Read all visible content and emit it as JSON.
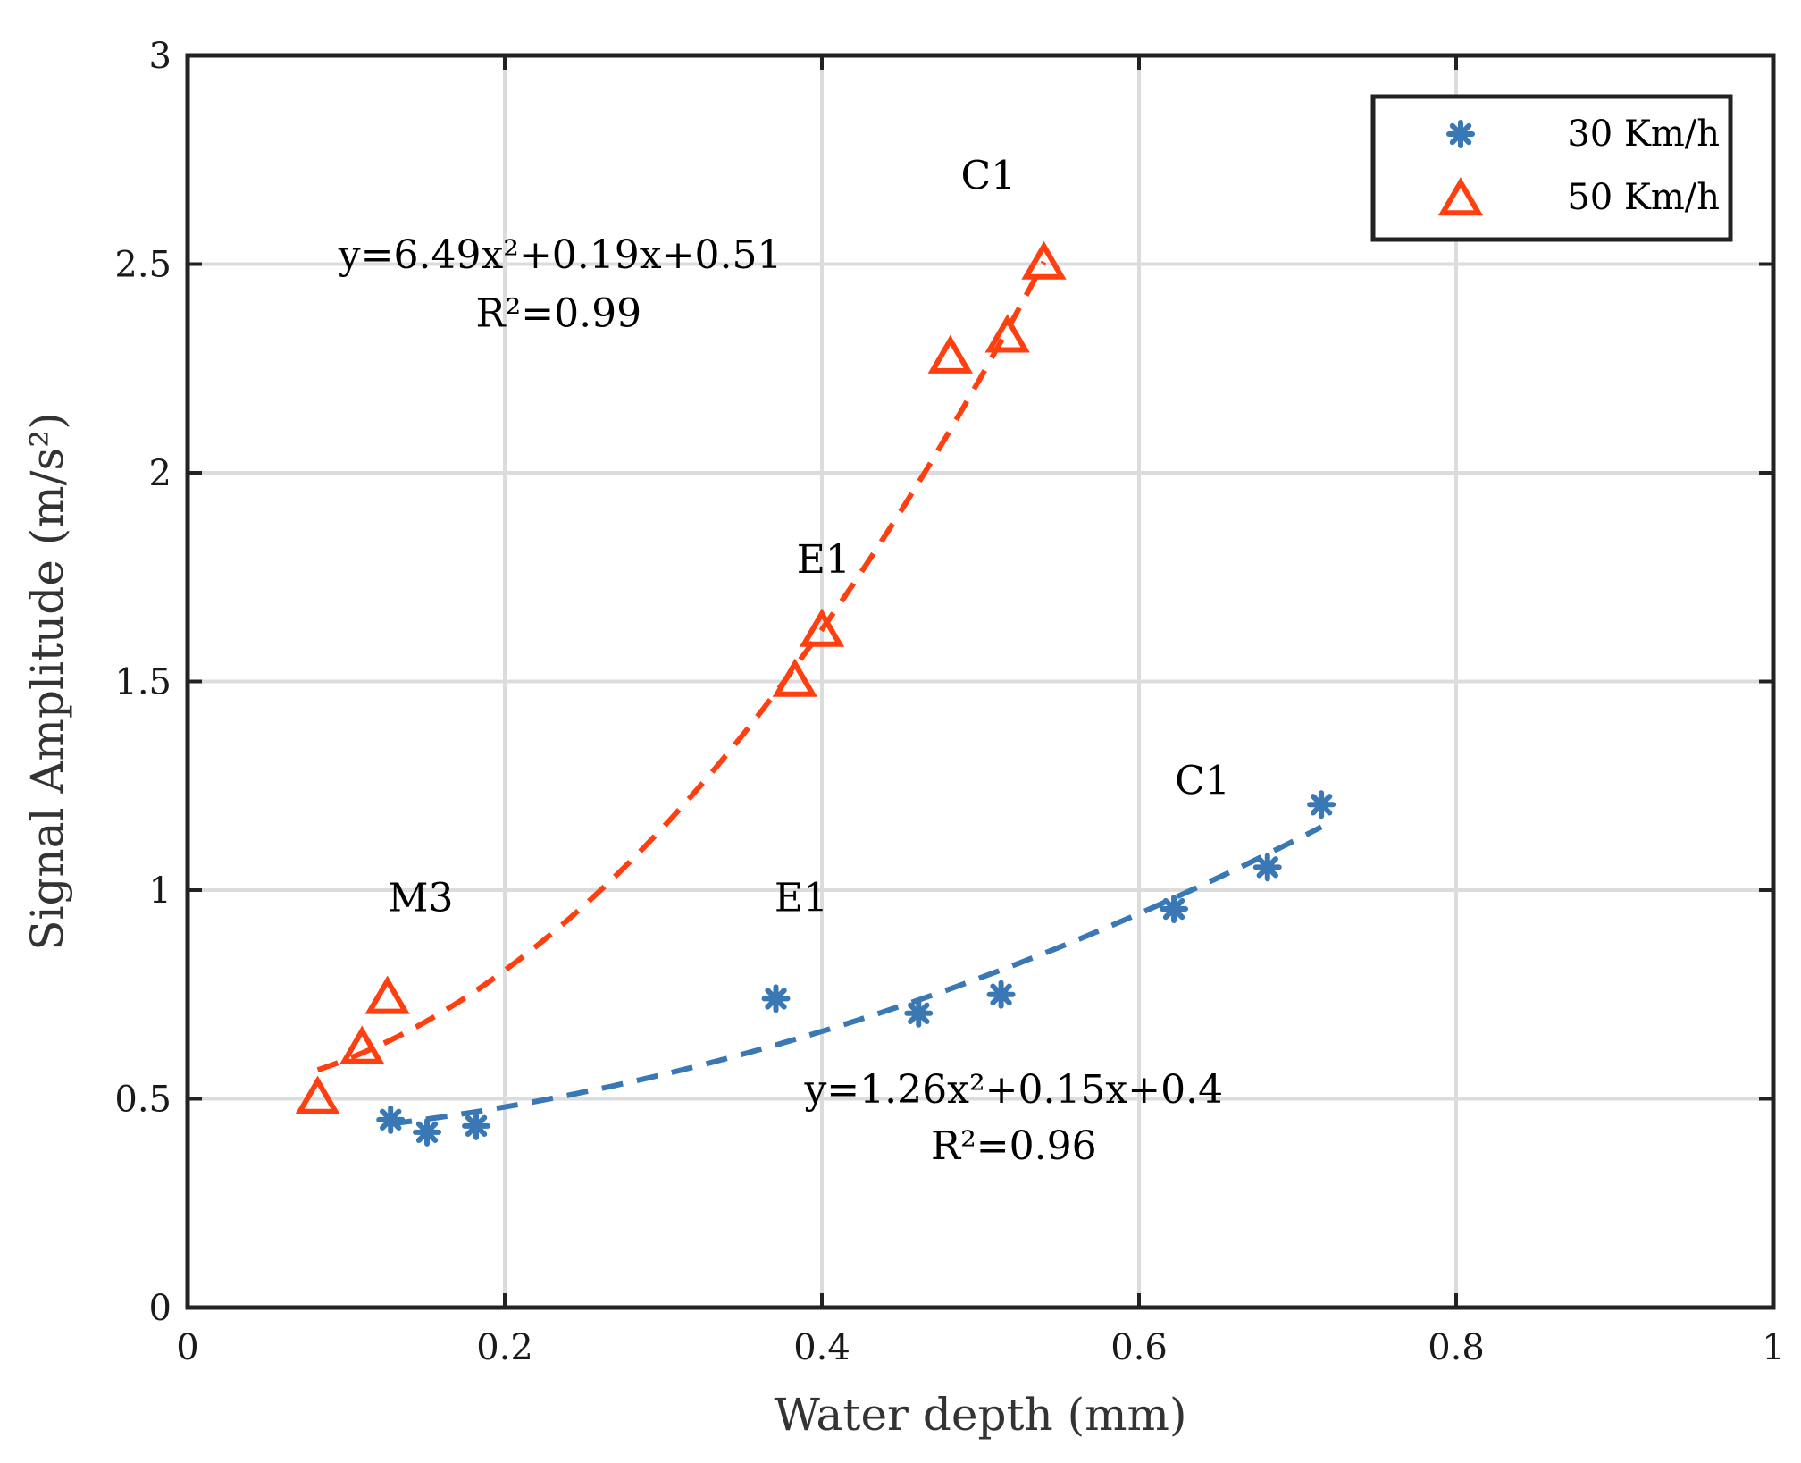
{
  "chart_data": {
    "type": "scatter",
    "title": "",
    "xlabel": "Water depth (mm)",
    "ylabel": "Signal Amplitude (m/s²)",
    "xlim": [
      0,
      1
    ],
    "ylim": [
      0,
      3
    ],
    "xticks": [
      0,
      0.2,
      0.4,
      0.6,
      0.8,
      1
    ],
    "xtick_labels": [
      "0",
      "0.2",
      "0.4",
      "0.6",
      "0.8",
      "1"
    ],
    "yticks": [
      0,
      0.5,
      1,
      1.5,
      2,
      2.5,
      3
    ],
    "ytick_labels": [
      "0",
      "0.5",
      "1",
      "1.5",
      "2",
      "2.5",
      "3"
    ],
    "grid": true,
    "legend_position": "top-right",
    "series": [
      {
        "name": "30 Km/h",
        "marker": "asterisk",
        "color": "#3a78b5",
        "x": [
          0.128,
          0.151,
          0.182,
          0.371,
          0.461,
          0.513,
          0.622,
          0.681,
          0.715
        ],
        "y": [
          0.45,
          0.42,
          0.435,
          0.74,
          0.705,
          0.75,
          0.955,
          1.055,
          1.205
        ],
        "fit": {
          "a": 1.26,
          "b": 0.15,
          "c": 0.4,
          "x_range": [
            0.128,
            0.715
          ],
          "label": "y=1.26x²+0.15x+0.4",
          "r2_label": "R²=0.96"
        }
      },
      {
        "name": "50 Km/h",
        "marker": "triangle",
        "color": "#ff3f10",
        "x": [
          0.082,
          0.11,
          0.126,
          0.383,
          0.4,
          0.481,
          0.517,
          0.54
        ],
        "y": [
          0.5,
          0.62,
          0.74,
          1.5,
          1.62,
          2.275,
          2.325,
          2.5
        ],
        "fit": {
          "a": 6.49,
          "b": 0.19,
          "c": 0.51,
          "x_range": [
            0.082,
            0.54
          ],
          "label": "y=6.49x²+0.19x+0.51",
          "r2_label": "R²=0.99"
        }
      }
    ],
    "annotations": [
      {
        "text": "C1",
        "x": 0.505,
        "y": 2.68
      },
      {
        "text": "E1",
        "x": 0.401,
        "y": 1.76
      },
      {
        "text": "M3",
        "x": 0.147,
        "y": 0.95
      },
      {
        "text": "E1",
        "x": 0.387,
        "y": 0.95
      },
      {
        "text": "C1",
        "x": 0.64,
        "y": 1.23
      },
      {
        "text": "y=6.49x²+0.19x+0.51",
        "x": 0.235,
        "y": 2.49
      },
      {
        "text": "R²=0.99",
        "x": 0.234,
        "y": 2.35
      },
      {
        "text": "y=1.26x²+0.15x+0.4",
        "x": 0.521,
        "y": 0.49
      },
      {
        "text": "R²=0.96",
        "x": 0.521,
        "y": 0.355
      }
    ]
  }
}
